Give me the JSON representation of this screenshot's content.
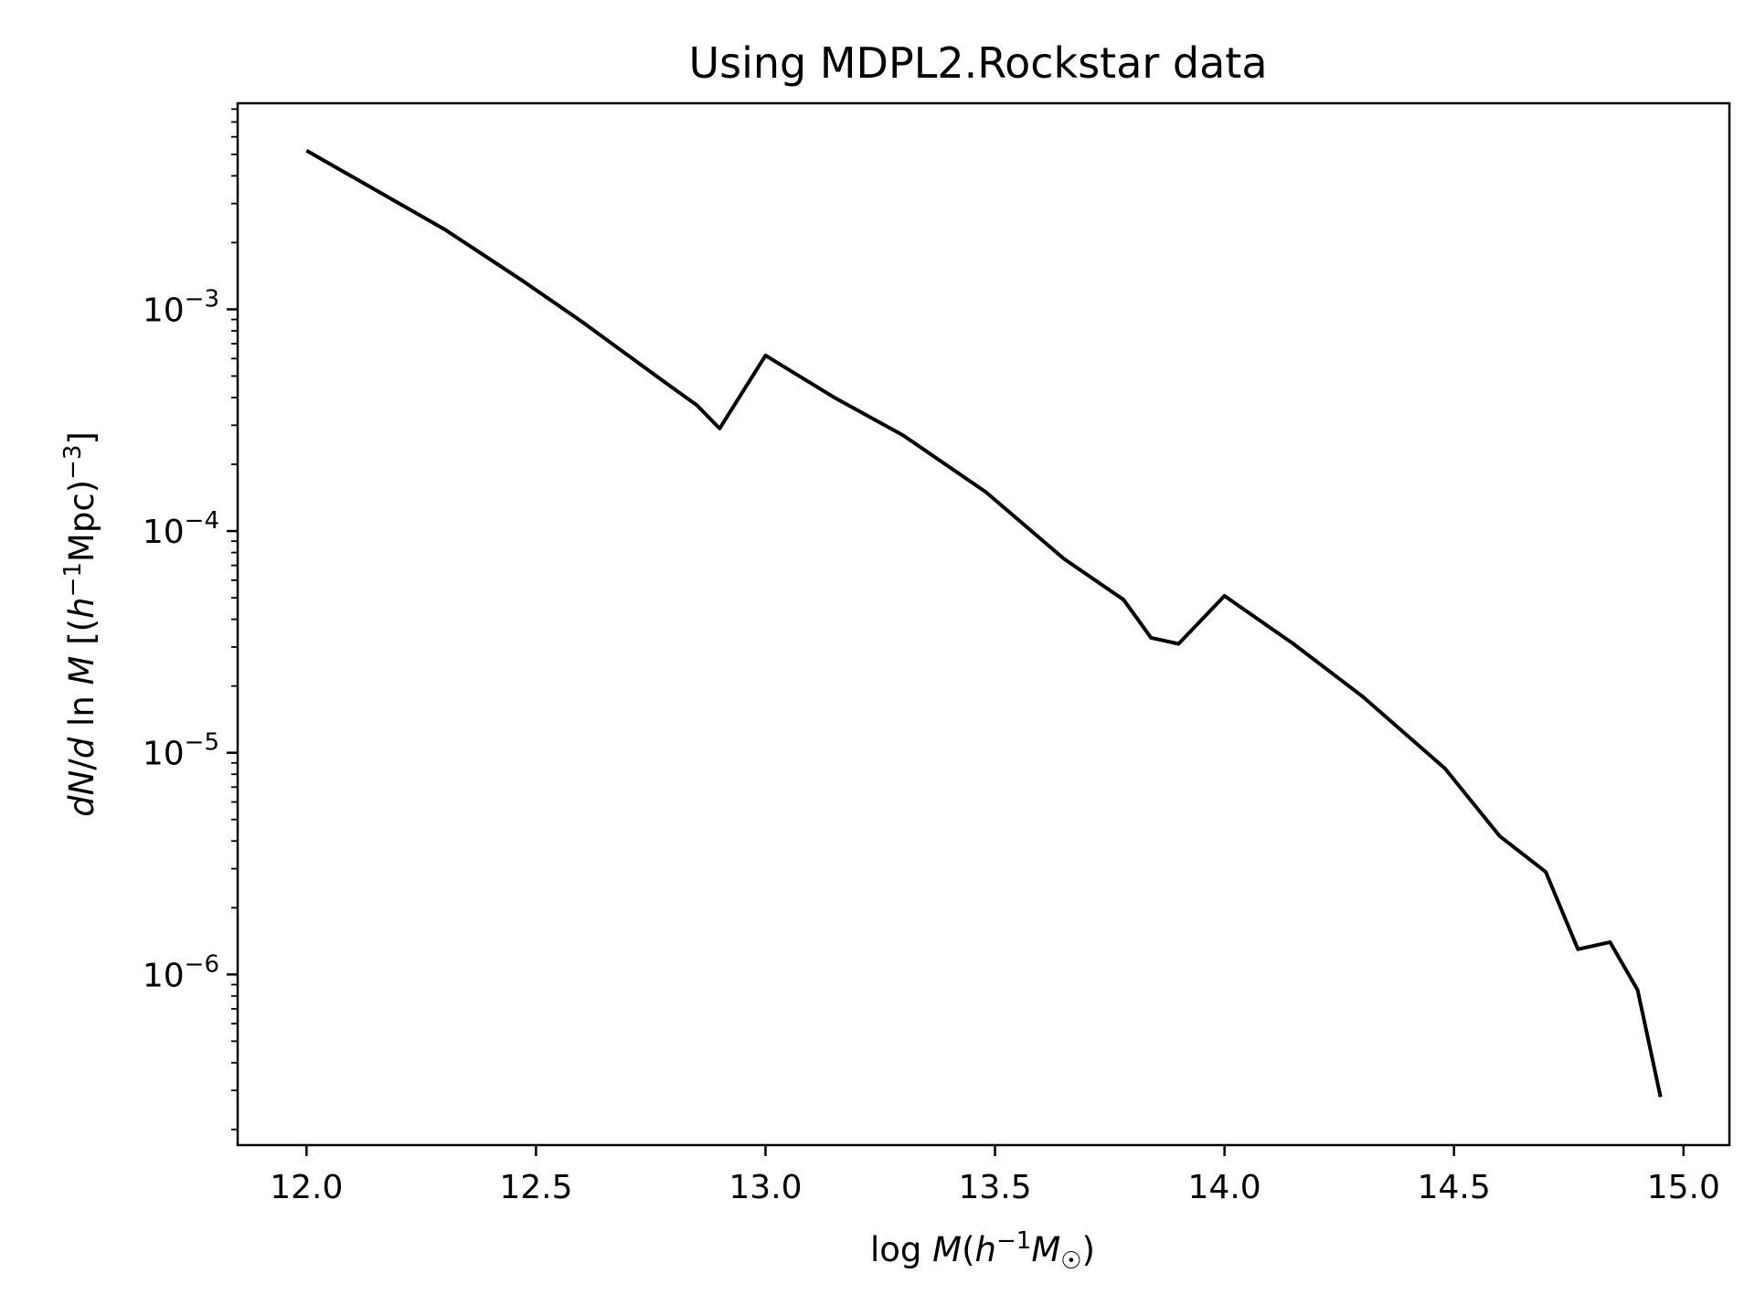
{
  "chart_data": {
    "type": "line",
    "title": "Using MDPL2.Rockstar data",
    "xlabel": "log M(h⁻¹M☉)",
    "ylabel": "dN/d ln M [(h⁻¹Mpc)⁻³]",
    "xlim": [
      11.85,
      15.1
    ],
    "ylim": [
      1.7e-07,
      0.0085
    ],
    "yscale": "log",
    "grid": false,
    "line_color": "#000000",
    "x_ticks": [
      {
        "value": 12.0,
        "label": "12.0"
      },
      {
        "value": 12.5,
        "label": "12.5"
      },
      {
        "value": 13.0,
        "label": "13.0"
      },
      {
        "value": 13.5,
        "label": "13.5"
      },
      {
        "value": 14.0,
        "label": "14.0"
      },
      {
        "value": 14.5,
        "label": "14.5"
      },
      {
        "value": 15.0,
        "label": "15.0"
      }
    ],
    "y_ticks": [
      {
        "exp": -3,
        "base": "10",
        "sup": "−3"
      },
      {
        "exp": -4,
        "base": "10",
        "sup": "−4"
      },
      {
        "exp": -5,
        "base": "10",
        "sup": "−5"
      },
      {
        "exp": -6,
        "base": "10",
        "sup": "−6"
      }
    ],
    "series": [
      {
        "x": [
          12.0,
          12.3,
          12.47,
          12.6,
          12.78,
          12.85,
          12.9,
          13.0,
          13.15,
          13.3,
          13.48,
          13.65,
          13.78,
          13.84,
          13.9,
          14.0,
          14.15,
          14.3,
          14.48,
          14.6,
          14.7,
          14.77,
          14.84,
          14.9,
          14.95
        ],
        "y": [
          0.0052,
          0.0023,
          0.00135,
          0.00088,
          0.00047,
          0.00037,
          0.00029,
          0.00062,
          0.0004,
          0.00027,
          0.00015,
          7.5e-05,
          4.9e-05,
          3.3e-05,
          3.1e-05,
          5.1e-05,
          3.1e-05,
          1.8e-05,
          8.5e-06,
          4.2e-06,
          2.9e-06,
          1.3e-06,
          1.4e-06,
          8.5e-07,
          2.8e-07
        ]
      }
    ]
  }
}
